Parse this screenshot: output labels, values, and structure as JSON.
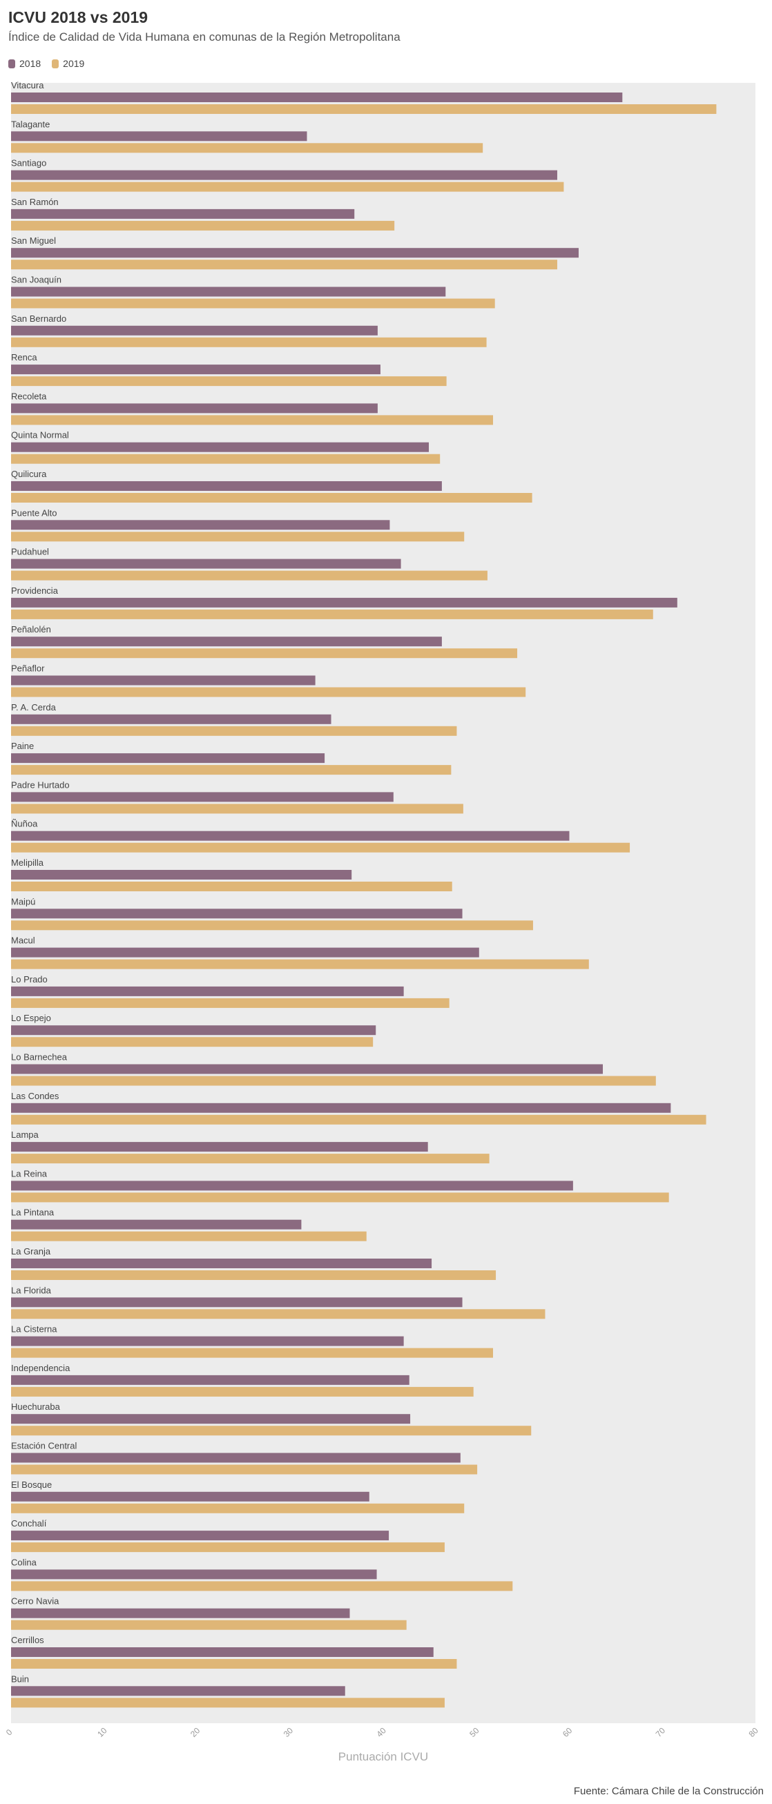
{
  "header": {
    "title": "ICVU 2018 vs 2019",
    "subtitle": "Índice de Calidad de Vida Humana en comunas de la Región Metropolitana"
  },
  "footer": {
    "source": "Fuente: Cámara Chile de la Construcción"
  },
  "colors": {
    "s2018": "#8b6a80",
    "s2019": "#dfb677",
    "plot_bg": "#ececec"
  },
  "chart_data": {
    "type": "bar",
    "orientation": "horizontal",
    "xlabel": "Puntuación ICVU",
    "xlim": [
      0,
      80
    ],
    "xticks": [
      0,
      10,
      20,
      30,
      40,
      50,
      60,
      70,
      80
    ],
    "legend_position": "top-left",
    "categories": [
      "Vitacura",
      "Talagante",
      "Santiago",
      "San Ramón",
      "San Miguel",
      "San Joaquín",
      "San Bernardo",
      "Renca",
      "Recoleta",
      "Quinta Normal",
      "Quilicura",
      "Puente Alto",
      "Pudahuel",
      "Providencia",
      "Peñalolén",
      "Peñaflor",
      "P. A. Cerda",
      "Paine",
      "Padre Hurtado",
      "Ñuñoa",
      "Melipilla",
      "Maipú",
      "Macul",
      "Lo Prado",
      "Lo Espejo",
      "Lo Barnechea",
      "Las Condes",
      "Lampa",
      "La Reina",
      "La Pintana",
      "La Granja",
      "La Florida",
      "La Cisterna",
      "Independencia",
      "Huechuraba",
      "Estación Central",
      "El Bosque",
      "Conchalí",
      "Colina",
      "Cerro Navia",
      "Cerrillos",
      "Buin"
    ],
    "series": [
      {
        "name": "2018",
        "values": [
          65.7,
          31.8,
          58.7,
          36.9,
          61.0,
          46.7,
          39.4,
          39.7,
          39.4,
          44.9,
          46.3,
          40.7,
          41.9,
          71.6,
          46.3,
          32.7,
          34.4,
          33.7,
          41.1,
          60.0,
          36.6,
          48.5,
          50.3,
          42.2,
          39.2,
          63.6,
          70.9,
          44.8,
          60.4,
          31.2,
          45.2,
          48.5,
          42.2,
          42.8,
          42.9,
          48.3,
          38.5,
          40.6,
          39.3,
          36.4,
          45.4,
          35.9
        ]
      },
      {
        "name": "2019",
        "values": [
          75.8,
          50.7,
          59.4,
          41.2,
          58.7,
          52.0,
          51.1,
          46.8,
          51.8,
          46.1,
          56.0,
          48.7,
          51.2,
          69.0,
          54.4,
          55.3,
          47.9,
          47.3,
          48.6,
          66.5,
          47.4,
          56.1,
          62.1,
          47.1,
          38.9,
          69.3,
          74.7,
          51.4,
          70.7,
          38.2,
          52.1,
          57.4,
          51.8,
          49.7,
          55.9,
          50.1,
          48.7,
          46.6,
          53.9,
          42.5,
          47.9,
          46.6
        ]
      }
    ]
  }
}
